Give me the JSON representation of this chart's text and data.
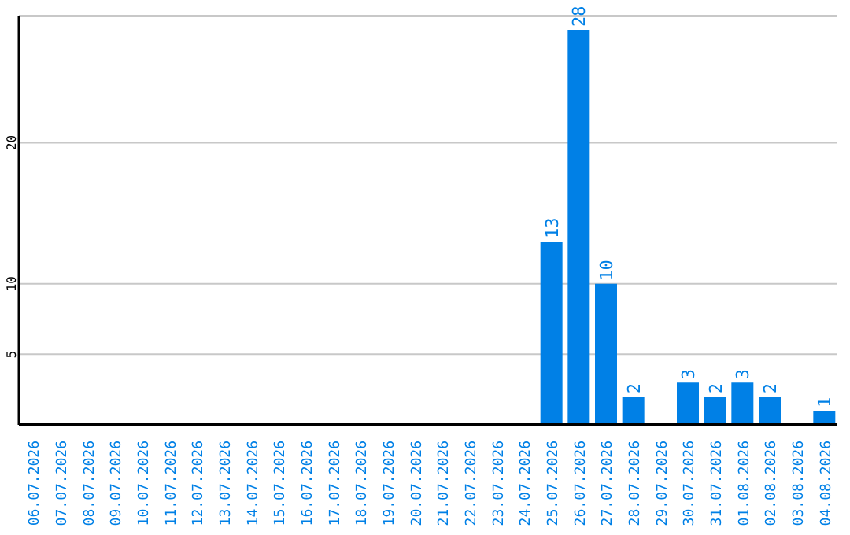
{
  "chart_data": {
    "type": "bar",
    "categories": [
      "06.07.2026",
      "07.07.2026",
      "08.07.2026",
      "09.07.2026",
      "10.07.2026",
      "11.07.2026",
      "12.07.2026",
      "13.07.2026",
      "14.07.2026",
      "15.07.2026",
      "16.07.2026",
      "17.07.2026",
      "18.07.2026",
      "19.07.2026",
      "20.07.2026",
      "21.07.2026",
      "22.07.2026",
      "23.07.2026",
      "24.07.2026",
      "25.07.2026",
      "26.07.2026",
      "27.07.2026",
      "28.07.2026",
      "29.07.2026",
      "30.07.2026",
      "31.07.2026",
      "01.08.2026",
      "02.08.2026",
      "03.08.2026",
      "04.08.2026"
    ],
    "values": [
      0,
      0,
      0,
      0,
      0,
      0,
      0,
      0,
      0,
      0,
      0,
      0,
      0,
      0,
      0,
      0,
      0,
      0,
      0,
      13,
      28,
      10,
      2,
      0,
      3,
      2,
      3,
      2,
      0,
      1
    ],
    "value_labels": [
      null,
      null,
      null,
      null,
      null,
      null,
      null,
      null,
      null,
      null,
      null,
      null,
      null,
      null,
      null,
      null,
      null,
      null,
      null,
      "13",
      "28",
      "10",
      "2",
      null,
      "3",
      "2",
      "3",
      "2",
      null,
      "1"
    ],
    "color": "#0080e6",
    "ylim": [
      0,
      29
    ],
    "yticks": [
      5,
      10,
      20
    ],
    "grid": "y"
  }
}
